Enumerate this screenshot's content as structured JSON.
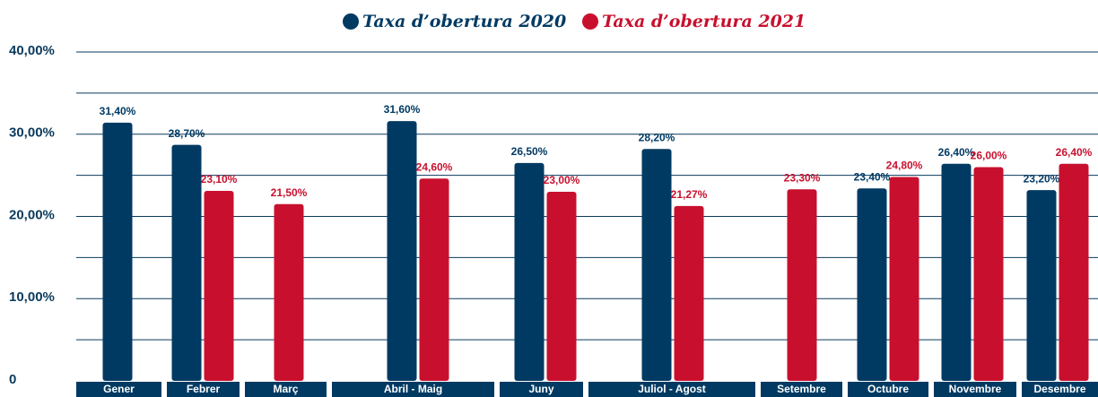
{
  "chart_data": {
    "type": "bar",
    "categories": [
      "Gener",
      "Febrer",
      "Març",
      "Abril - Maig",
      "Juny",
      "Juliol - Agost",
      "Setembre",
      "Octubre",
      "Novembre",
      "Desembre"
    ],
    "series": [
      {
        "name": "Taxa d’obertura 2020",
        "color": "#003a63",
        "values": [
          31.4,
          28.7,
          null,
          31.6,
          26.5,
          28.2,
          null,
          23.4,
          26.4,
          23.2
        ],
        "value_labels": [
          "31,40%",
          "28,70%",
          null,
          "31,60%",
          "26,50%",
          "28,20%",
          null,
          "23,40%",
          "26,40%",
          "23,20%"
        ]
      },
      {
        "name": "Taxa d’obertura 2021",
        "color": "#c8102e",
        "values": [
          null,
          23.1,
          21.5,
          24.6,
          23.0,
          21.27,
          23.3,
          24.8,
          26.0,
          26.4
        ],
        "value_labels": [
          null,
          "23,10%",
          "21,50%",
          "24,60%",
          "23,00%",
          "21,27%",
          "23,30%",
          "24,80%",
          "26,00%",
          "26,40%"
        ]
      }
    ],
    "ylim": [
      0,
      40
    ],
    "yticks": [
      0,
      {
        "value": 10,
        "label": "10,00%"
      },
      {
        "value": 20,
        "label": "20,00%"
      },
      {
        "value": 30,
        "label": "30,00%"
      },
      {
        "value": 40,
        "label": "40,00%"
      }
    ],
    "minor_yticks": [
      5,
      15,
      25,
      35
    ],
    "grid": true,
    "legend": "top"
  }
}
